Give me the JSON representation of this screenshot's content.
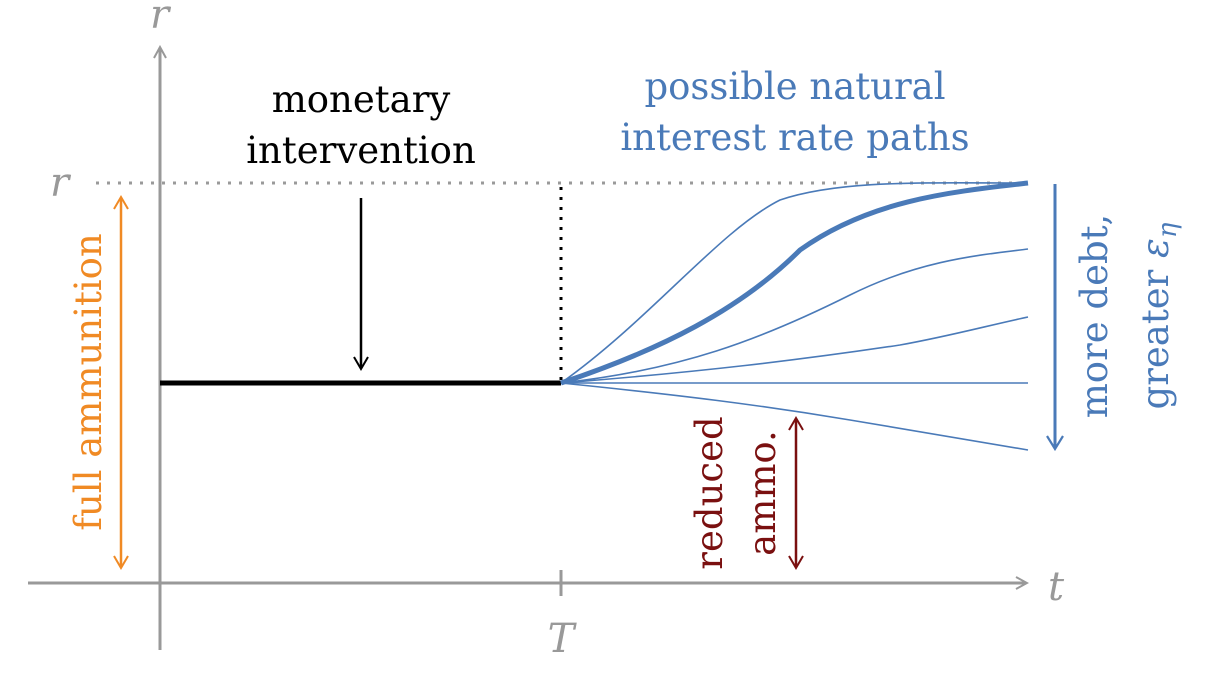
{
  "axes": {
    "y_label": "r",
    "x_label": "t",
    "r_level_label": "r",
    "t_tick_label": "T"
  },
  "annotations": {
    "monetary_line1": "monetary",
    "monetary_line2": "intervention",
    "paths_line1": "possible natural",
    "paths_line2": "interest rate paths",
    "full_ammo": "full ammunition",
    "reduced_line1": "reduced",
    "reduced_line2": "ammo.",
    "debt_line1": "more debt,",
    "debt_line2_text": "greater ",
    "debt_line2_symbol": "ε",
    "debt_line2_sub": "η"
  },
  "colors": {
    "axis": "#999999",
    "policy": "#000000",
    "paths": "#4a7ab8",
    "full_ammo": "#f08a24",
    "reduced_ammo": "#7a1010",
    "dotted_ref": "#9a9a9a"
  }
}
